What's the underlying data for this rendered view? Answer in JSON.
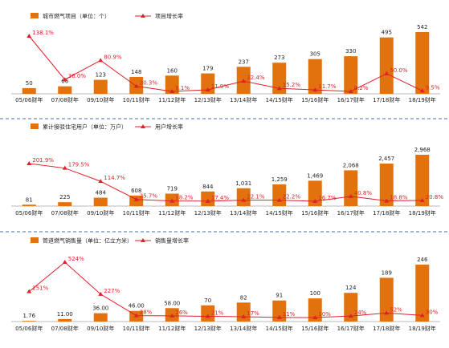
{
  "colors": {
    "bar": "#e2720e",
    "line": "#e0202a",
    "axis": "#bbbbbb",
    "separator": "#4a6fa5"
  },
  "categories": [
    "05/06财年",
    "07/08财年",
    "09/10财年",
    "10/11财年",
    "11/12财年",
    "12/13财年",
    "13/14财年",
    "14/15财年",
    "15/16财年",
    "16/17财年",
    "17/18财年",
    "18/19财年"
  ],
  "chart_data": [
    {
      "type": "bar",
      "bar_legend": "城市燃气项目（单位：个）",
      "line_legend": "项目增长率",
      "categories": [
        "05/06财年",
        "07/08财年",
        "09/10财年",
        "10/11财年",
        "11/12财年",
        "12/13财年",
        "13/14财年",
        "14/15财年",
        "15/16财年",
        "16/17财年",
        "17/18财年",
        "18/19财年"
      ],
      "series": [
        {
          "name": "城市燃气项目（单位：个）",
          "kind": "bar",
          "values": [
            50,
            66,
            123,
            148,
            160,
            179,
            237,
            273,
            305,
            330,
            495,
            542
          ],
          "labels": [
            "50",
            "66",
            "123",
            "148",
            "160",
            "179",
            "237",
            "273",
            "305",
            "330",
            "495",
            "542"
          ]
        },
        {
          "name": "项目增长率",
          "kind": "line",
          "values": [
            138.1,
            36.0,
            80.9,
            20.3,
            8.1,
            11.9,
            32.4,
            15.2,
            11.7,
            8.2,
            50.0,
            9.5
          ],
          "labels": [
            "138.1%",
            "36.0%",
            "80.9%",
            "20.3%",
            "8.1%",
            "11.9%",
            "32.4%",
            "15.2%",
            "11.7%",
            "8.2%",
            "50.0%",
            "9.5%"
          ]
        }
      ]
    },
    {
      "type": "bar",
      "bar_legend": "累计接驳住宅用户（单位：万户）",
      "line_legend": "用户增长率",
      "categories": [
        "05/06财年",
        "07/08财年",
        "09/10财年",
        "10/11财年",
        "11/12财年",
        "12/13财年",
        "13/14财年",
        "14/15财年",
        "15/16财年",
        "16/17财年",
        "17/18财年",
        "18/19财年"
      ],
      "series": [
        {
          "name": "累计接驳住宅用户（单位：万户）",
          "kind": "bar",
          "values": [
            81,
            225,
            484,
            608,
            719,
            844,
            1031,
            1259,
            1469,
            2068,
            2457,
            2968
          ],
          "labels": [
            "81",
            "225",
            "484",
            "608",
            "719",
            "844",
            "1,031",
            "1,259",
            "1,469",
            "2,068",
            "2,457",
            "2,968"
          ]
        },
        {
          "name": "用户增长率",
          "kind": "line",
          "values": [
            201.9,
            179.5,
            114.7,
            25.7,
            18.2,
            17.4,
            22.1,
            22.2,
            16.7,
            40.8,
            18.8,
            20.8
          ],
          "labels": [
            "201.9%",
            "179.5%",
            "114.7%",
            "25.7%",
            "18.2%",
            "17.4%",
            "22.1%",
            "22.2%",
            "16.7%",
            "40.8%",
            "18.8%",
            "20.8%"
          ]
        }
      ]
    },
    {
      "type": "bar",
      "bar_legend": "管道燃气销售量（单位：亿立方米）",
      "line_legend": "销售量增长率",
      "categories": [
        "05/06财年",
        "07/08财年",
        "09/10财年",
        "10/11财年",
        "11/12财年",
        "12/13财年",
        "13/14财年",
        "14/15财年",
        "15/16财年",
        "16/17财年",
        "17/18财年",
        "18/19财年"
      ],
      "series": [
        {
          "name": "管道燃气销售量（单位：亿立方米）",
          "kind": "bar",
          "values": [
            1.76,
            11.0,
            36.0,
            46.0,
            58.0,
            70,
            82,
            91,
            100,
            124,
            189,
            246
          ],
          "labels": [
            "1.76",
            "11.00",
            "36.00",
            "46.00",
            "58.00",
            "70",
            "82",
            "91",
            "100",
            "124",
            "189",
            "246"
          ]
        },
        {
          "name": "销售量增长率",
          "kind": "line",
          "values": [
            251,
            524,
            227,
            28,
            26,
            21,
            17,
            11,
            10,
            24,
            52,
            30
          ],
          "labels": [
            "251%",
            "524%",
            "227%",
            "28%",
            "26%",
            "21%",
            "17%",
            "11%",
            "10%",
            "24%",
            "52%",
            "30%"
          ]
        }
      ]
    }
  ]
}
